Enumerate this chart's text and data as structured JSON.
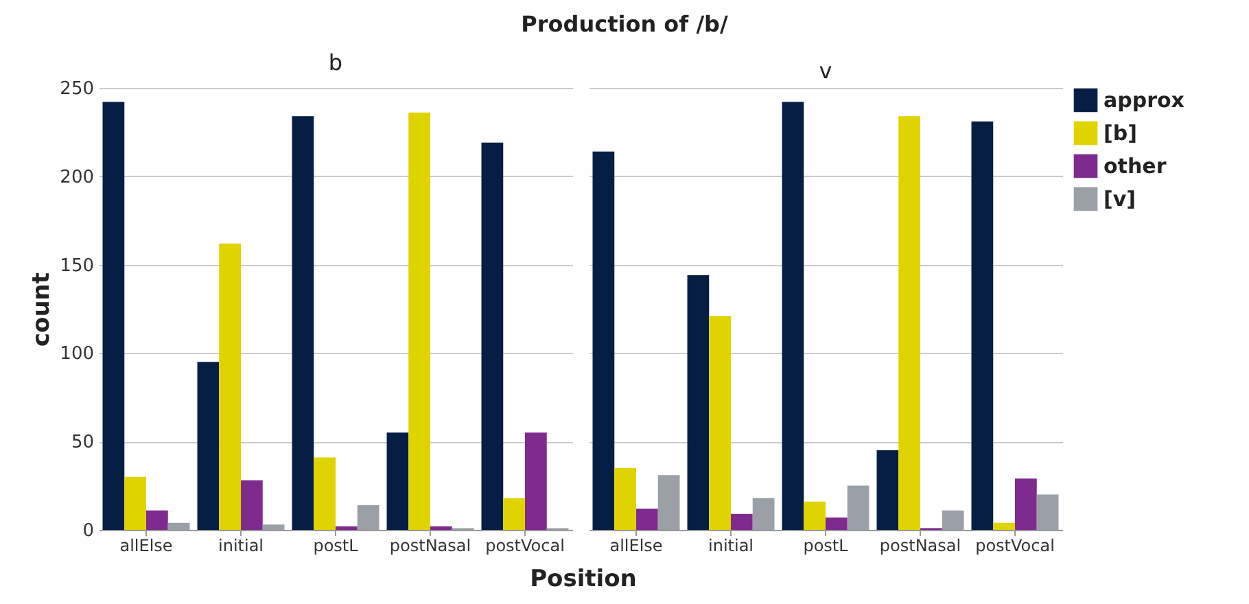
{
  "chart_data": [
    {
      "type": "bar",
      "title": "Production of /b/",
      "subtitle": "b",
      "xlabel": "Position",
      "ylabel": "count",
      "categories": [
        "allElse",
        "initial",
        "postL",
        "postNasal",
        "postVocal"
      ],
      "series": [
        {
          "color": "#061e44",
          "values": [
            242,
            95,
            234,
            55,
            219
          ]
        },
        {
          "color": "#e0d400",
          "values": [
            30,
            162,
            41,
            236,
            18
          ]
        },
        {
          "color": "#7f2a8e",
          "values": [
            11,
            28,
            2,
            2,
            55
          ]
        },
        {
          "color": "#9aa0a6",
          "values": [
            4,
            3,
            14,
            1,
            1
          ]
        }
      ],
      "ylim": [
        0,
        250
      ],
      "yticks": [
        0,
        50,
        100,
        150,
        200,
        250
      ],
      "grid": "y"
    },
    {
      "type": "bar",
      "subtitle": "v",
      "categories": [
        "allElse",
        "initial",
        "postL",
        "postNasal",
        "postVocal"
      ],
      "series": [
        {
          "name": "approx",
          "color": "#061e44",
          "values": [
            214,
            144,
            242,
            45,
            231
          ]
        },
        {
          "name": "[b]",
          "color": "#e0d400",
          "values": [
            35,
            121,
            16,
            234,
            4
          ]
        },
        {
          "name": "other",
          "color": "#7f2a8e",
          "values": [
            12,
            9,
            7,
            1,
            29
          ]
        },
        {
          "name": "[v]",
          "color": "#9aa0a6",
          "values": [
            31,
            18,
            25,
            11,
            20
          ]
        }
      ],
      "ylim": [
        0,
        250
      ],
      "yticks": [
        0,
        50,
        100,
        150,
        200,
        250
      ],
      "grid": "y",
      "legend": "right",
      "tick_labels": "x"
    }
  ]
}
